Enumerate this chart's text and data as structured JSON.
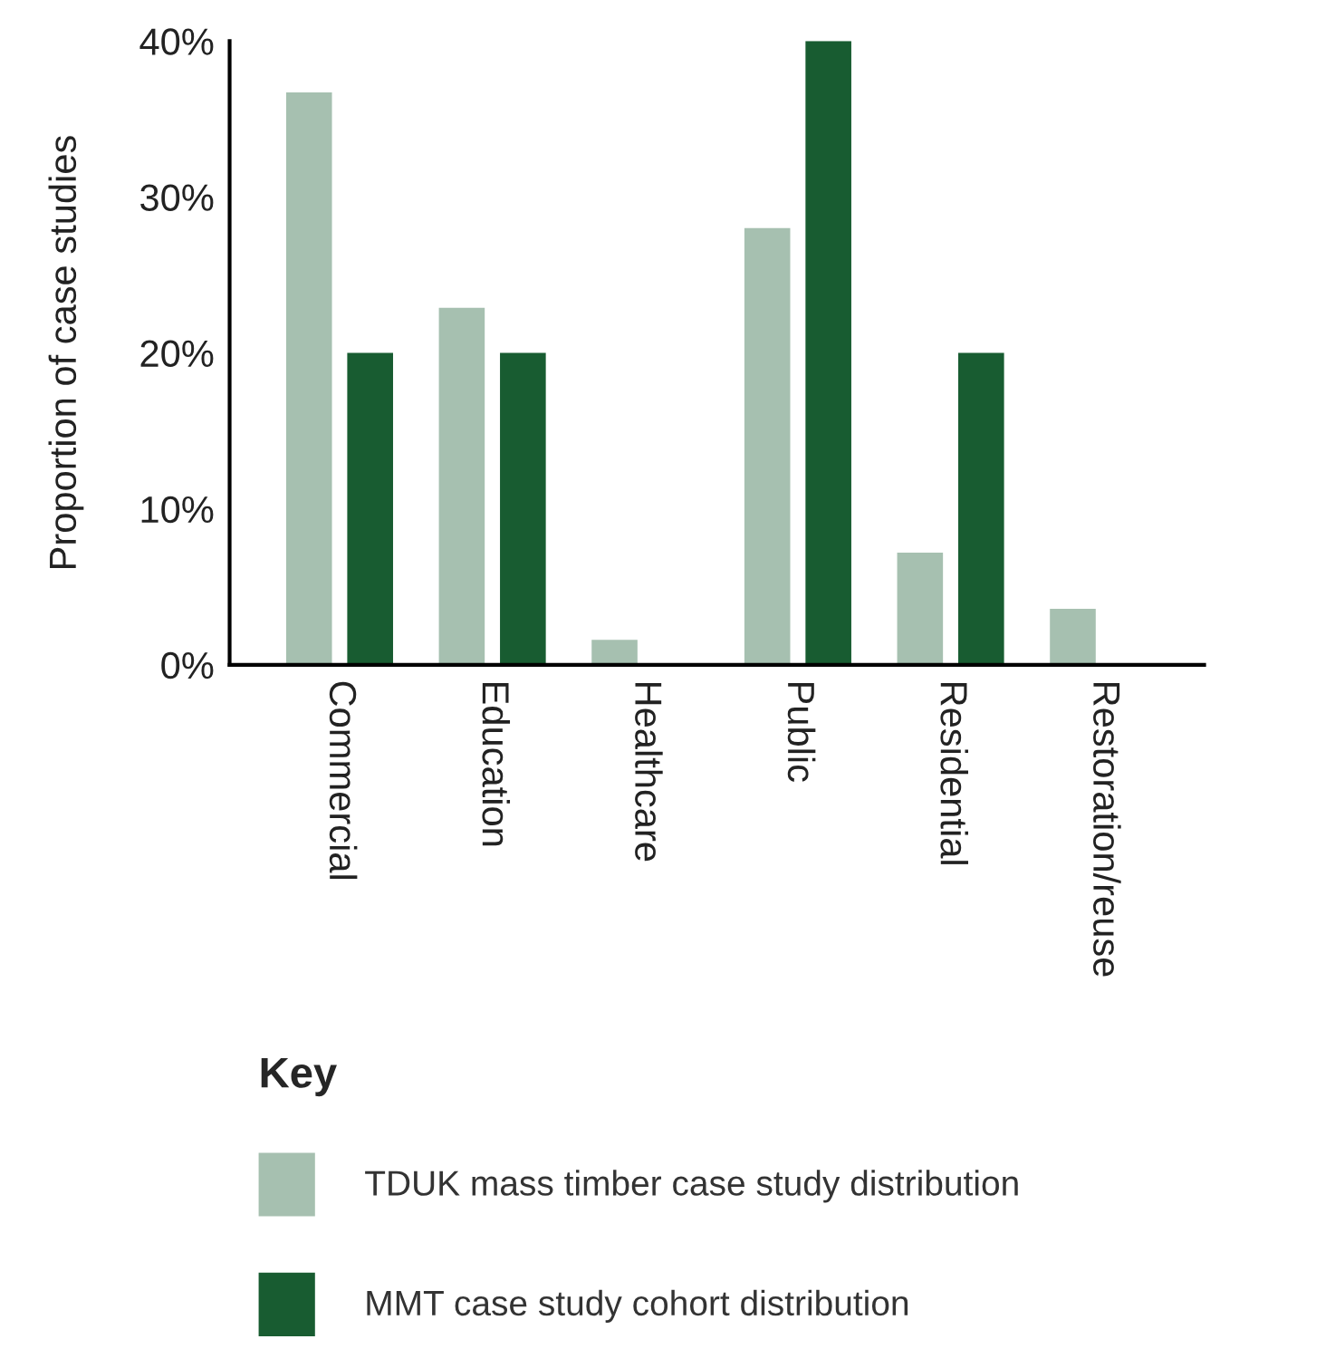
{
  "chart_data": {
    "type": "bar",
    "ylabel": "Proportion of case studies",
    "legend_title": "Key",
    "categories": [
      "Commercial",
      "Education",
      "Healthcare",
      "Public",
      "Residential",
      "Restoration/reuse"
    ],
    "series": [
      {
        "name": "TDUK mass timber case study distribution",
        "color": "#a6c0b0",
        "values": [
          36.7,
          22.9,
          1.6,
          28.0,
          7.2,
          3.6
        ]
      },
      {
        "name": "MMT case study cohort distribution",
        "color": "#185c31",
        "values": [
          20,
          20,
          0,
          40,
          20,
          0
        ]
      }
    ],
    "ylim": [
      0,
      40
    ],
    "yticks": [
      {
        "value": 0,
        "label": "0%"
      },
      {
        "value": 10,
        "label": "10%"
      },
      {
        "value": 20,
        "label": "20%"
      },
      {
        "value": 30,
        "label": "30%"
      },
      {
        "value": 40,
        "label": "40%"
      }
    ],
    "grid": false,
    "legend": "bottom left"
  }
}
